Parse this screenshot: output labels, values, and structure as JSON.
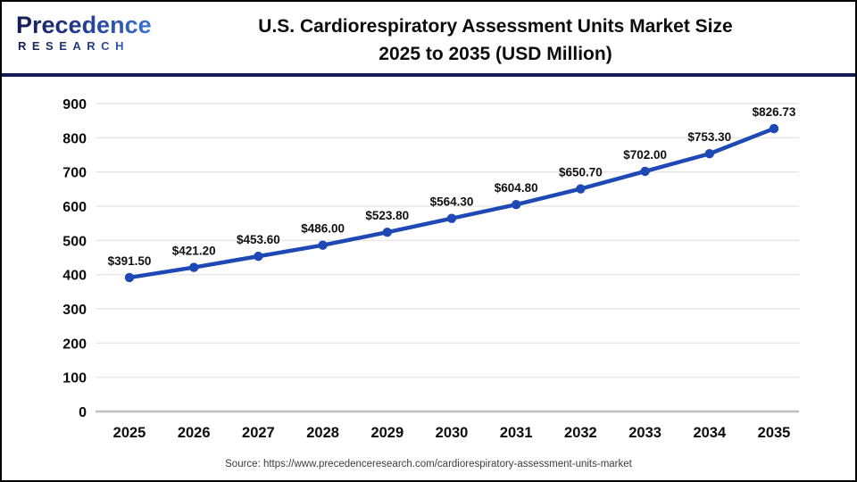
{
  "header": {
    "logo_line1": "Precedence",
    "logo_line2": "RESEARCH",
    "title_line1": "U.S. Cardiorespiratory Assessment Units Market Size",
    "title_line2": "2025 to 2035 (USD Million)"
  },
  "chart_data": {
    "type": "line",
    "title": "U.S. Cardiorespiratory Assessment Units Market Size 2025 to 2035 (USD Million)",
    "categories": [
      "2025",
      "2026",
      "2027",
      "2028",
      "2029",
      "2030",
      "2031",
      "2032",
      "2033",
      "2034",
      "2035"
    ],
    "values": [
      391.5,
      421.2,
      453.6,
      486.0,
      523.8,
      564.3,
      604.8,
      650.7,
      702.0,
      753.3,
      826.73
    ],
    "point_labels": [
      "$391.50",
      "$421.20",
      "$453.60",
      "$486.00",
      "$523.80",
      "$564.30",
      "$604.80",
      "$650.70",
      "$702.00",
      "$753.30",
      "$826.73"
    ],
    "ylim": [
      0,
      900
    ],
    "ytick_step": 100,
    "ytick_labels": [
      "0",
      "100",
      "200",
      "300",
      "400",
      "500",
      "600",
      "700",
      "800",
      "900"
    ],
    "grid": true,
    "legend": "none",
    "xlabel": "",
    "ylabel": "",
    "colors": {
      "line": "#1e49b4",
      "marker": "#1e49b4",
      "gridline": "#e7e7e7",
      "baseline": "#bfbfbf",
      "tick_text": "#0c0c0c",
      "data_label_text": "#111111"
    }
  },
  "footer": {
    "source": "Source: https://www.precedenceresearch.com/cardiorespiratory-assessment-units-market"
  }
}
